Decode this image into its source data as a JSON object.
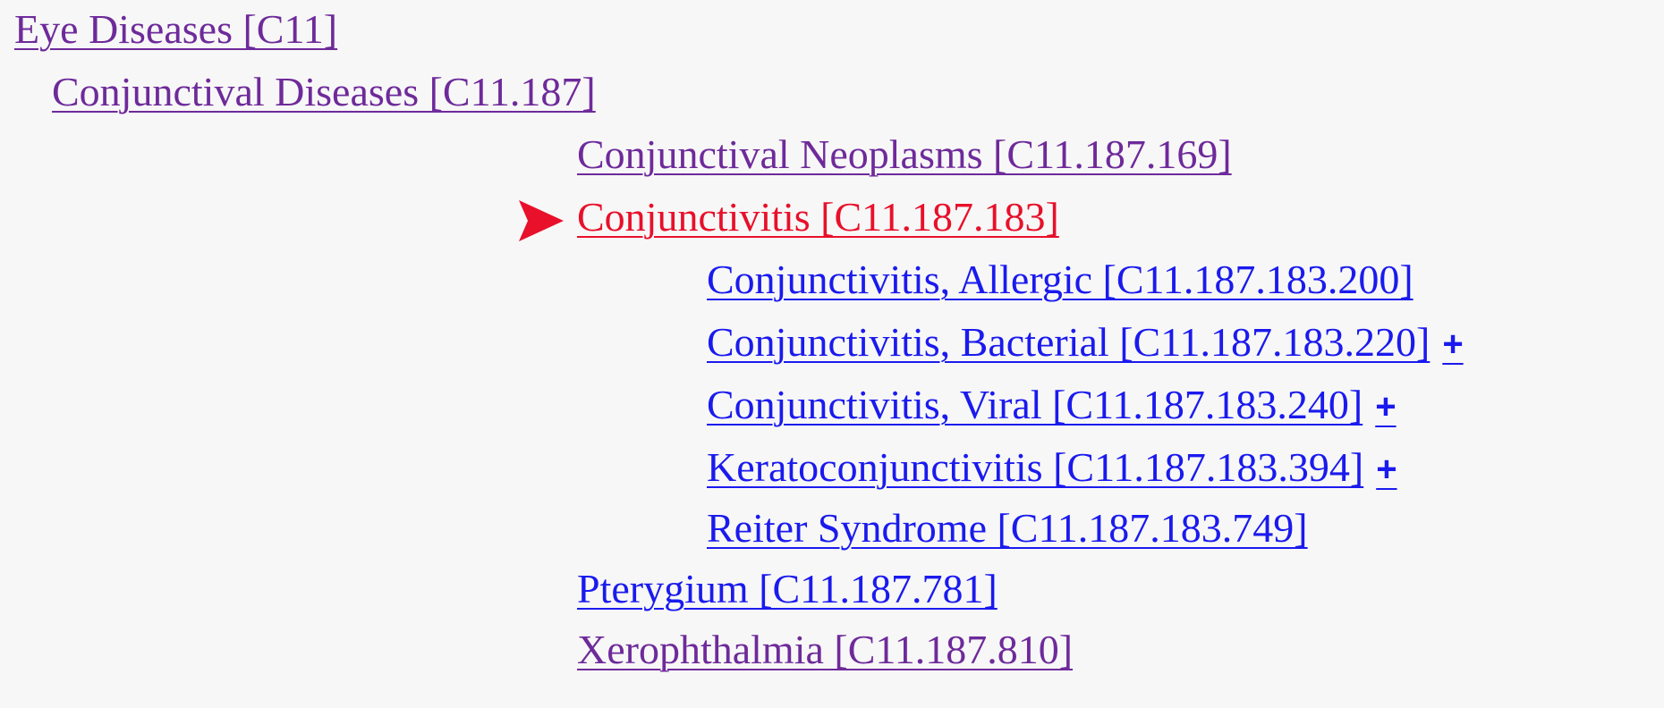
{
  "tree": {
    "items": [
      {
        "label": "Eye Diseases [C11]",
        "state": "visited"
      },
      {
        "label": "Conjunctival Diseases [C11.187]",
        "state": "visited"
      },
      {
        "label": "Conjunctival Neoplasms [C11.187.169]",
        "state": "visited"
      },
      {
        "label": "Conjunctivitis [C11.187.183]",
        "state": "current"
      },
      {
        "label": "Conjunctivitis, Allergic [C11.187.183.200]",
        "state": "unvisited"
      },
      {
        "label": "Conjunctivitis, Bacterial [C11.187.183.220]",
        "state": "unvisited",
        "expand": "+"
      },
      {
        "label": "Conjunctivitis, Viral [C11.187.183.240]",
        "state": "unvisited",
        "expand": "+"
      },
      {
        "label": "Keratoconjunctivitis [C11.187.183.394]",
        "state": "unvisited",
        "expand": "+"
      },
      {
        "label": "Reiter Syndrome [C11.187.183.749]",
        "state": "unvisited"
      },
      {
        "label": "Pterygium [C11.187.781]",
        "state": "unvisited"
      },
      {
        "label": "Xerophthalmia [C11.187.810]",
        "state": "visited"
      }
    ],
    "current_marker_icon": "red-arrow-icon"
  },
  "colors": {
    "visited_link": "#6e2a9a",
    "unvisited_link": "#1a1aee",
    "current_link": "#e8102a",
    "background": "#f7f7f7"
  }
}
